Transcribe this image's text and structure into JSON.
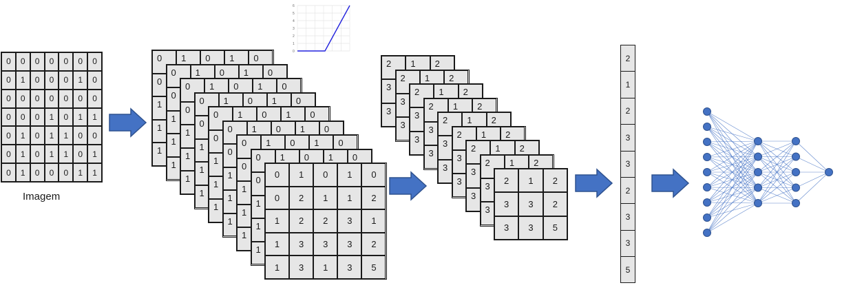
{
  "input_image": {
    "caption": "Imagem",
    "rows": [
      [
        "0",
        "0",
        "0",
        "0",
        "0",
        "0",
        "0"
      ],
      [
        "0",
        "1",
        "0",
        "0",
        "0",
        "1",
        "0"
      ],
      [
        "0",
        "0",
        "0",
        "0",
        "0",
        "0",
        "0"
      ],
      [
        "0",
        "0",
        "0",
        "1",
        "0",
        "1",
        "1"
      ],
      [
        "0",
        "1",
        "0",
        "1",
        "1",
        "0",
        "0"
      ],
      [
        "0",
        "1",
        "0",
        "1",
        "1",
        "0",
        "1"
      ],
      [
        "0",
        "1",
        "0",
        "0",
        "0",
        "1",
        "1"
      ]
    ]
  },
  "convolution_stack": {
    "front_rows": [
      [
        "0",
        "1",
        "0",
        "1",
        "0"
      ],
      [
        "0",
        "2",
        "1",
        "1",
        "2"
      ],
      [
        "1",
        "2",
        "2",
        "3",
        "1"
      ],
      [
        "1",
        "3",
        "3",
        "3",
        "2"
      ],
      [
        "1",
        "3",
        "1",
        "3",
        "5"
      ]
    ],
    "back_top_row": [
      "0",
      "1",
      "0",
      "1",
      "0"
    ],
    "back_left_column": [
      "0",
      "0",
      "1",
      "1",
      "1"
    ]
  },
  "pooling_stack": {
    "front_rows": [
      [
        "2",
        "1",
        "2"
      ],
      [
        "3",
        "3",
        "2"
      ],
      [
        "3",
        "3",
        "5"
      ]
    ],
    "back_top_row": [
      "2",
      "1",
      "2"
    ],
    "back_left_column": [
      "2",
      "3",
      "3"
    ]
  },
  "flattened_vector": [
    "2",
    "1",
    "2",
    "3",
    "3",
    "2",
    "3",
    "3",
    "5"
  ],
  "activation_plot": {
    "y_ticks": [
      "6",
      "5",
      "4",
      "3",
      "2",
      "1",
      "0"
    ]
  },
  "neural_network": {
    "layers": [
      9,
      5,
      5,
      1
    ]
  },
  "colors": {
    "arrow": "#4472c4",
    "arrow_border": "#2f528f",
    "node": "#4472c4",
    "edge": "#4472c4",
    "cell_fill": "#e6e6e6",
    "relu_line": "#2222dd"
  }
}
